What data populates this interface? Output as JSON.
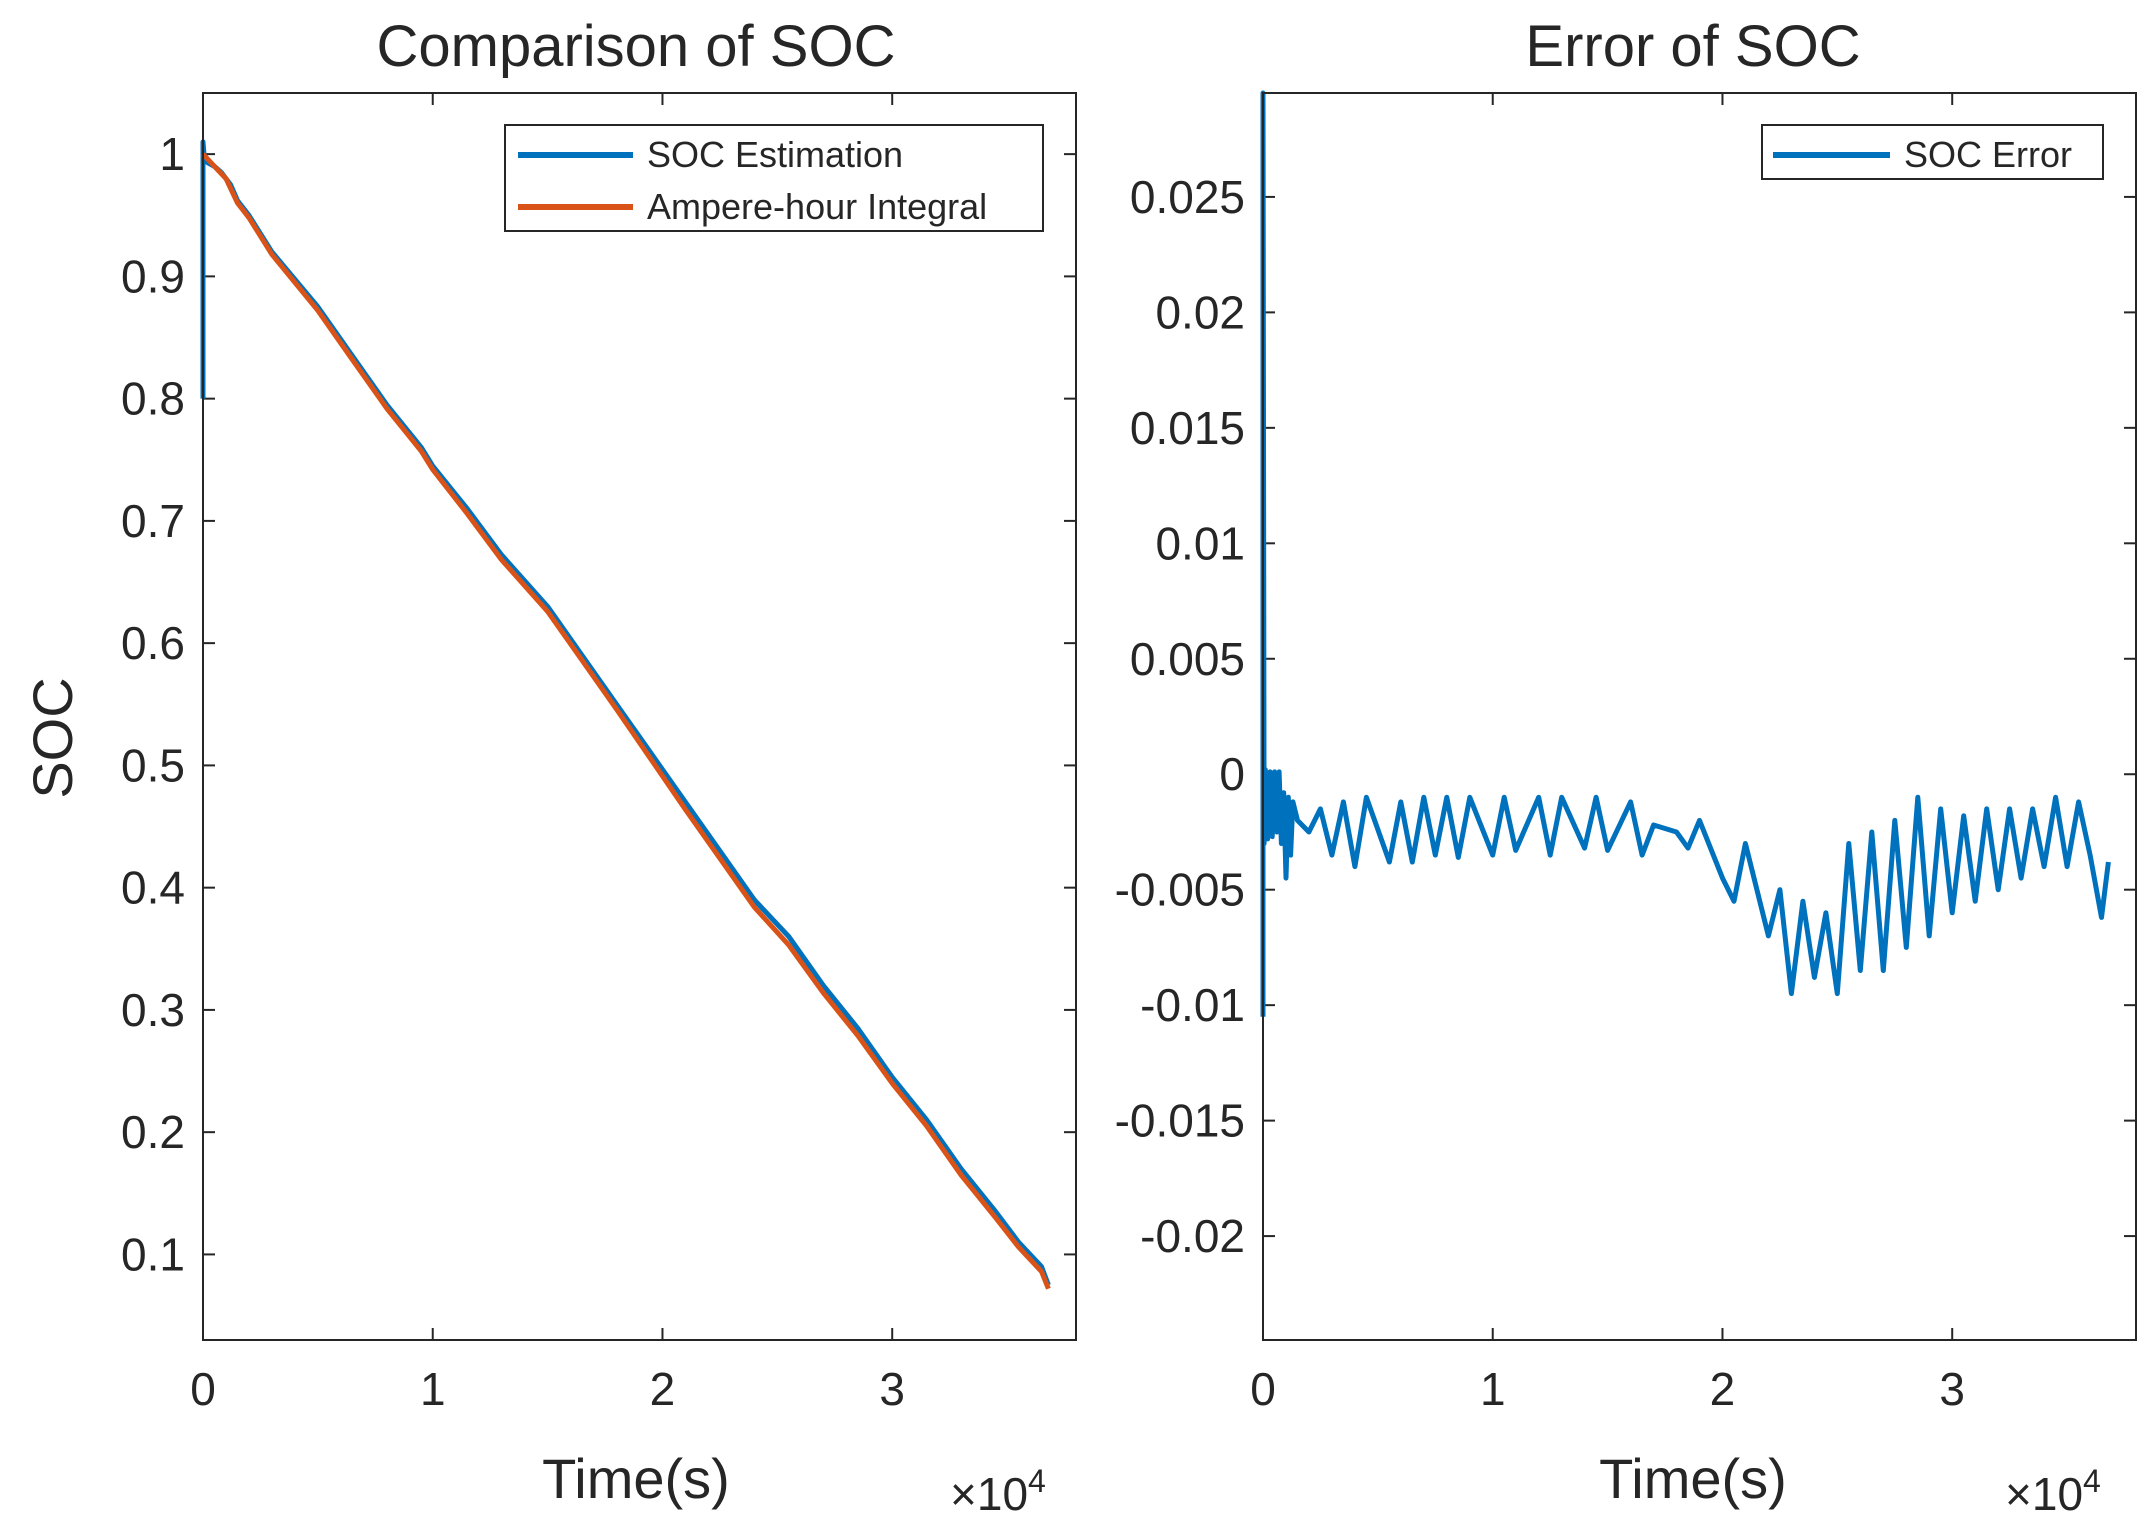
{
  "colors": {
    "estimation": "#0072BD",
    "integral": "#D95319",
    "error": "#0072BD",
    "axes": "#262626",
    "background": "#ffffff"
  },
  "chart_data": [
    {
      "type": "line",
      "title": "Comparison of SOC",
      "xlabel": "Time(s)",
      "ylabel": "SOC",
      "x_multiplier": "×10",
      "x_multiplier_exp": "4",
      "xlim": [
        0,
        3.8
      ],
      "ylim": [
        0.03,
        1.05
      ],
      "xticks": [
        0,
        1,
        2,
        3
      ],
      "xtick_labels": [
        "0",
        "1",
        "2",
        "3"
      ],
      "yticks": [
        0.1,
        0.2,
        0.3,
        0.4,
        0.5,
        0.6,
        0.7,
        0.8,
        0.9,
        1
      ],
      "ytick_labels": [
        "0.1",
        "0.2",
        "0.3",
        "0.4",
        "0.5",
        "0.6",
        "0.7",
        "0.8",
        "0.9",
        "1"
      ],
      "legend_position": "top-right",
      "series": [
        {
          "name": "SOC Estimation",
          "color_key": "estimation",
          "x": [
            0,
            0,
            0.005,
            0.01,
            0.02,
            0.05,
            0.08,
            0.1,
            0.12,
            0.15,
            0.2,
            0.3,
            0.5,
            0.65,
            0.8,
            0.95,
            1.0,
            1.15,
            1.3,
            1.5,
            1.65,
            1.8,
            1.95,
            2.1,
            2.25,
            2.4,
            2.55,
            2.7,
            2.85,
            3.0,
            3.15,
            3.3,
            3.45,
            3.55,
            3.65,
            3.68
          ],
          "y": [
            0.8,
            1.01,
            0.998,
            0.996,
            0.993,
            0.99,
            0.985,
            0.98,
            0.975,
            0.962,
            0.95,
            0.92,
            0.875,
            0.835,
            0.795,
            0.76,
            0.745,
            0.71,
            0.672,
            0.63,
            0.59,
            0.55,
            0.51,
            0.47,
            0.43,
            0.39,
            0.36,
            0.32,
            0.285,
            0.245,
            0.21,
            0.17,
            0.135,
            0.11,
            0.09,
            0.075
          ]
        },
        {
          "name": "Ampere-hour Integral",
          "color_key": "integral",
          "x": [
            0,
            0.05,
            0.1,
            0.15,
            0.2,
            0.3,
            0.5,
            0.65,
            0.8,
            0.95,
            1.0,
            1.15,
            1.3,
            1.5,
            1.65,
            1.8,
            1.95,
            2.1,
            2.25,
            2.4,
            2.55,
            2.7,
            2.85,
            3.0,
            3.15,
            3.3,
            3.45,
            3.55,
            3.65,
            3.68
          ],
          "y": [
            1.0,
            0.99,
            0.98,
            0.96,
            0.948,
            0.918,
            0.872,
            0.832,
            0.792,
            0.757,
            0.742,
            0.706,
            0.668,
            0.626,
            0.586,
            0.546,
            0.505,
            0.464,
            0.424,
            0.384,
            0.353,
            0.314,
            0.279,
            0.24,
            0.205,
            0.165,
            0.13,
            0.106,
            0.086,
            0.072
          ]
        }
      ]
    },
    {
      "type": "line",
      "title": "Error of SOC",
      "xlabel": "Time(s)",
      "ylabel": "",
      "x_multiplier": "×10",
      "x_multiplier_exp": "4",
      "xlim": [
        0,
        3.8
      ],
      "ylim": [
        -0.0245,
        0.0295
      ],
      "xticks": [
        0,
        1,
        2,
        3
      ],
      "xtick_labels": [
        "0",
        "1",
        "2",
        "3"
      ],
      "yticks": [
        -0.02,
        -0.015,
        -0.01,
        -0.005,
        0,
        0.005,
        0.01,
        0.015,
        0.02,
        0.025
      ],
      "ytick_labels": [
        "-0.02",
        "-0.015",
        "-0.01",
        "-0.005",
        "0",
        "0.005",
        "0.01",
        "0.015",
        "0.02",
        "0.025"
      ],
      "legend_position": "top-right",
      "series": [
        {
          "name": "SOC Error",
          "color_key": "error",
          "x": [
            0,
            0,
            0.005,
            0.01,
            0.02,
            0.03,
            0.04,
            0.05,
            0.06,
            0.07,
            0.08,
            0.09,
            0.1,
            0.11,
            0.12,
            0.13,
            0.15,
            0.2,
            0.25,
            0.3,
            0.35,
            0.4,
            0.45,
            0.55,
            0.6,
            0.65,
            0.7,
            0.75,
            0.8,
            0.85,
            0.9,
            1.0,
            1.05,
            1.1,
            1.2,
            1.25,
            1.3,
            1.4,
            1.45,
            1.5,
            1.6,
            1.65,
            1.7,
            1.8,
            1.85,
            1.9,
            2.0,
            2.05,
            2.1,
            2.2,
            2.25,
            2.3,
            2.35,
            2.4,
            2.45,
            2.5,
            2.55,
            2.6,
            2.65,
            2.7,
            2.75,
            2.8,
            2.85,
            2.9,
            2.95,
            3.0,
            3.05,
            3.1,
            3.15,
            3.2,
            3.25,
            3.3,
            3.35,
            3.4,
            3.45,
            3.5,
            3.55,
            3.6,
            3.65,
            3.68
          ],
          "y": [
            -0.0105,
            0.0295,
            -0.003,
            0.0002,
            -0.0028,
            0.0001,
            -0.0027,
            0.0001,
            -0.0025,
            0.0001,
            -0.003,
            -0.0008,
            -0.0045,
            -0.001,
            -0.0035,
            -0.0012,
            -0.002,
            -0.0025,
            -0.0015,
            -0.0035,
            -0.0012,
            -0.004,
            -0.001,
            -0.0038,
            -0.0012,
            -0.0038,
            -0.001,
            -0.0035,
            -0.001,
            -0.0036,
            -0.001,
            -0.0035,
            -0.001,
            -0.0033,
            -0.001,
            -0.0035,
            -0.001,
            -0.0032,
            -0.001,
            -0.0033,
            -0.0012,
            -0.0035,
            -0.0022,
            -0.0025,
            -0.0032,
            -0.002,
            -0.0045,
            -0.0055,
            -0.003,
            -0.007,
            -0.005,
            -0.0095,
            -0.0055,
            -0.0088,
            -0.006,
            -0.0095,
            -0.003,
            -0.0085,
            -0.0025,
            -0.0085,
            -0.002,
            -0.0075,
            -0.001,
            -0.007,
            -0.0015,
            -0.006,
            -0.0018,
            -0.0055,
            -0.0015,
            -0.005,
            -0.0015,
            -0.0045,
            -0.0015,
            -0.004,
            -0.001,
            -0.004,
            -0.0012,
            -0.0035,
            -0.0062,
            -0.0038
          ]
        }
      ]
    }
  ]
}
